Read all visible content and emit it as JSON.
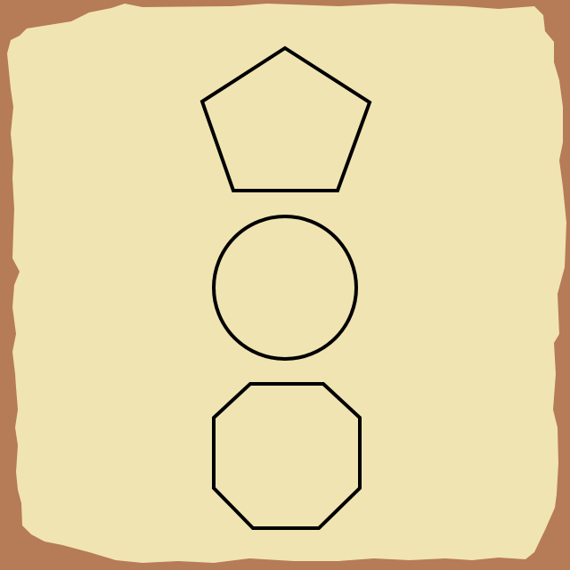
{
  "scene": {
    "background_color": "#B67B57",
    "paper_color": "#F0E4B2",
    "stroke_color": "#000000",
    "shapes": [
      {
        "kind": "pentagon",
        "icon": "pentagon-icon"
      },
      {
        "kind": "circle",
        "icon": "circle-icon"
      },
      {
        "kind": "octagon",
        "icon": "octagon-icon"
      }
    ]
  }
}
